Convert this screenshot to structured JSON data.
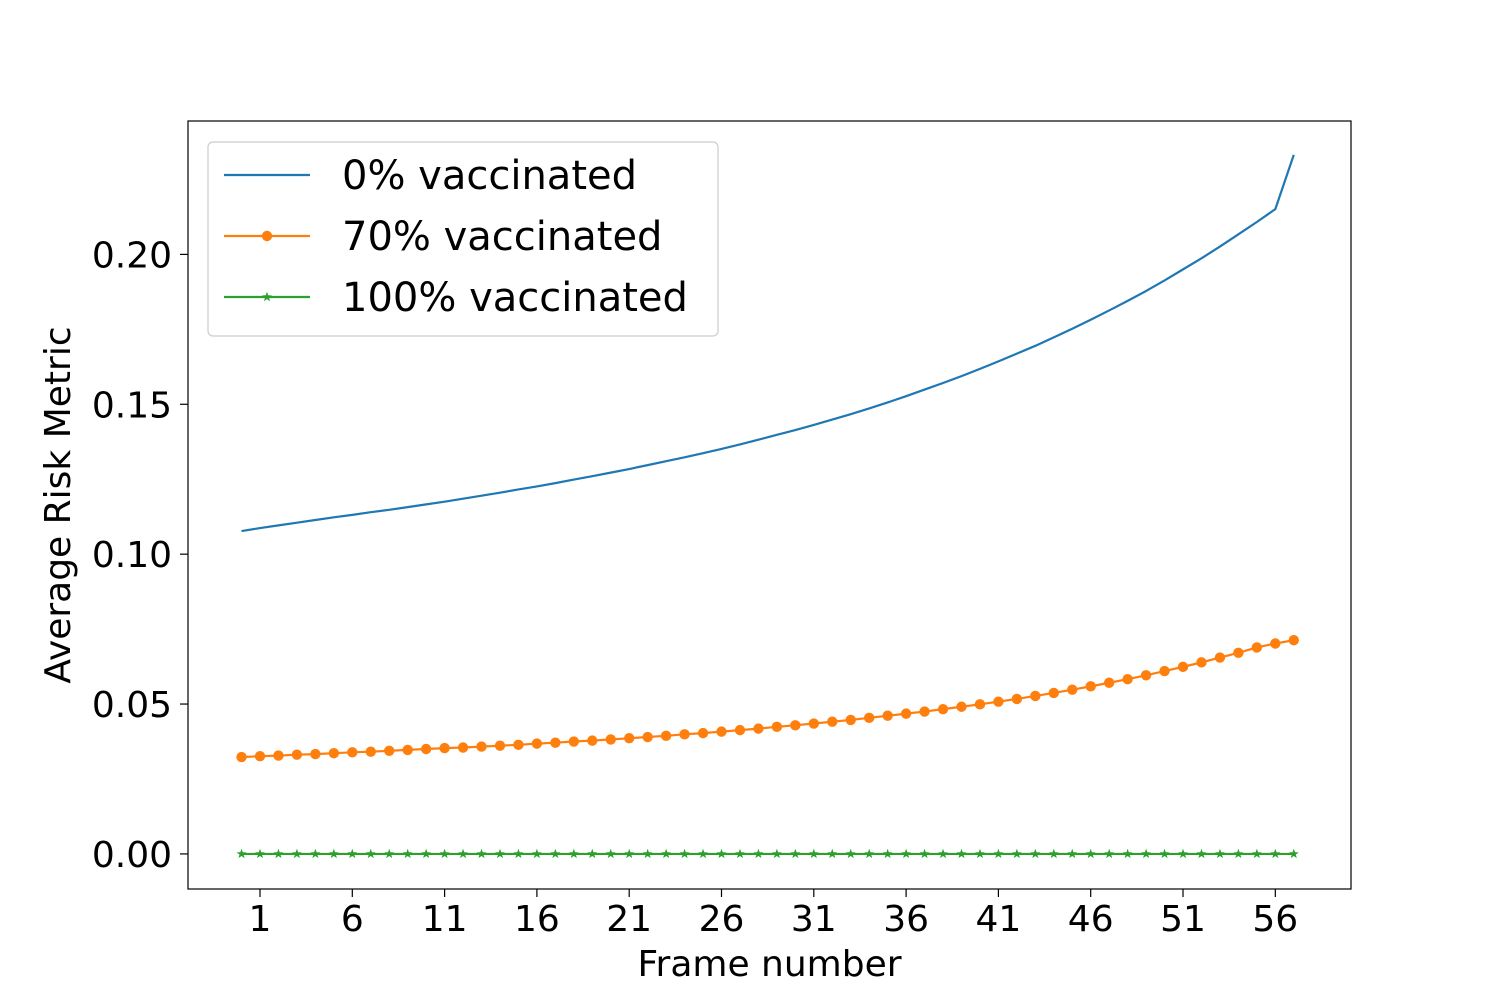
{
  "chart_data": {
    "type": "line",
    "title": "",
    "xlabel": "Frame number",
    "ylabel": "Average Risk Metric",
    "x": [
      0,
      1,
      2,
      3,
      4,
      5,
      6,
      7,
      8,
      9,
      10,
      11,
      12,
      13,
      14,
      15,
      16,
      17,
      18,
      19,
      20,
      21,
      22,
      23,
      24,
      25,
      26,
      27,
      28,
      29,
      30,
      31,
      32,
      33,
      34,
      35,
      36,
      37,
      38,
      39,
      40,
      41,
      42,
      43,
      44,
      45,
      46,
      47,
      48,
      49,
      50,
      51,
      52,
      53,
      54,
      55,
      56,
      57
    ],
    "xlim": [
      -2.9,
      60.1
    ],
    "ylim": [
      -0.0117,
      0.2445
    ],
    "xticks": [
      1,
      6,
      11,
      16,
      21,
      26,
      31,
      36,
      41,
      46,
      51,
      56
    ],
    "xtick_labels": [
      "1",
      "6",
      "11",
      "16",
      "21",
      "26",
      "31",
      "36",
      "41",
      "46",
      "51",
      "56"
    ],
    "yticks": [
      0.0,
      0.05,
      0.1,
      0.15,
      0.2
    ],
    "ytick_labels": [
      "0.00",
      "0.05",
      "0.10",
      "0.15",
      "0.20"
    ],
    "grid": false,
    "legend_position": "top-left",
    "series": [
      {
        "name": "0% vaccinated",
        "color": "#1f77b4",
        "marker": "none",
        "values": [
          0.1077,
          0.1087,
          0.1096,
          0.1105,
          0.1114,
          0.1123,
          0.1131,
          0.114,
          0.1148,
          0.1157,
          0.1166,
          0.1175,
          0.1185,
          0.1195,
          0.1205,
          0.1216,
          0.1226,
          0.1237,
          0.1249,
          0.126,
          0.1272,
          0.1284,
          0.1297,
          0.131,
          0.1323,
          0.1337,
          0.1351,
          0.1366,
          0.1382,
          0.1398,
          0.1414,
          0.1431,
          0.1449,
          0.1467,
          0.1486,
          0.1506,
          0.1527,
          0.1549,
          0.1571,
          0.1594,
          0.1618,
          0.1643,
          0.1669,
          0.1695,
          0.1723,
          0.1752,
          0.1782,
          0.1813,
          0.1845,
          0.1878,
          0.1913,
          0.195,
          0.1987,
          0.2026,
          0.2067,
          0.2108,
          0.2151,
          0.2332
        ]
      },
      {
        "name": "70% vaccinated",
        "color": "#ff7f0e",
        "marker": "circle",
        "values": [
          0.0323,
          0.0326,
          0.0328,
          0.0331,
          0.0333,
          0.0336,
          0.0339,
          0.0341,
          0.0344,
          0.0347,
          0.035,
          0.0353,
          0.0355,
          0.0358,
          0.0361,
          0.0364,
          0.0368,
          0.0371,
          0.0375,
          0.0378,
          0.0382,
          0.0386,
          0.039,
          0.0394,
          0.0399,
          0.0403,
          0.0408,
          0.0413,
          0.0418,
          0.0424,
          0.0429,
          0.0435,
          0.0441,
          0.0447,
          0.0454,
          0.0461,
          0.0468,
          0.0475,
          0.0483,
          0.0491,
          0.0499,
          0.0508,
          0.0517,
          0.0527,
          0.0537,
          0.0548,
          0.0559,
          0.0571,
          0.0583,
          0.0596,
          0.061,
          0.0624,
          0.0639,
          0.0655,
          0.0671,
          0.0689,
          0.0702,
          0.0713
        ]
      },
      {
        "name": "100% vaccinated",
        "color": "#2ca02c",
        "marker": "star",
        "values": [
          0,
          0,
          0,
          0,
          0,
          0,
          0,
          0,
          0,
          0,
          0,
          0,
          0,
          0,
          0,
          0,
          0,
          0,
          0,
          0,
          0,
          0,
          0,
          0,
          0,
          0,
          0,
          0,
          0,
          0,
          0,
          0,
          0,
          0,
          0,
          0,
          0,
          0,
          0,
          0,
          0,
          0,
          0,
          0,
          0,
          0,
          0,
          0,
          0,
          0,
          0,
          0,
          0,
          0,
          0,
          0,
          0,
          0
        ]
      }
    ]
  }
}
